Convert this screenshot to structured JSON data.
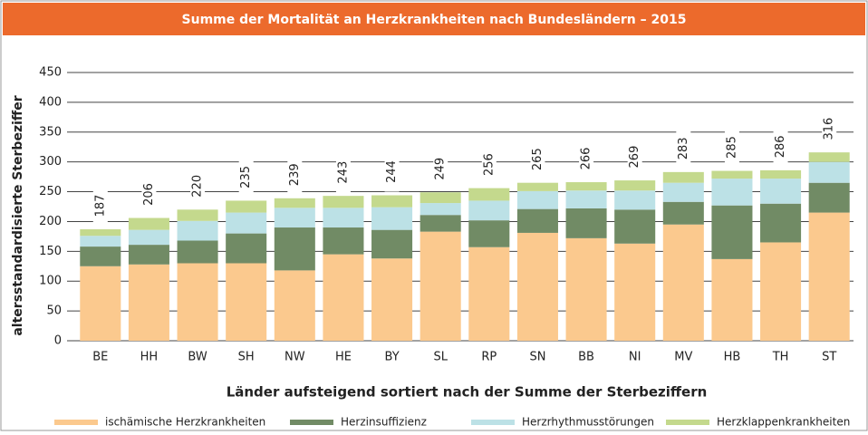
{
  "chart_data": {
    "type": "stacked_bar",
    "title": "Summe der Mortalität an Herzkrankheiten nach Bundesländern – 2015",
    "y_label": "altersstandardisierte Sterbeziffer",
    "x_label": "Länder aufsteigend sortiert nach der Summe der Sterbeziffern",
    "categories": [
      "BE",
      "HH",
      "BW",
      "SH",
      "NW",
      "HE",
      "BY",
      "SL",
      "RP",
      "SN",
      "BB",
      "NI",
      "MV",
      "HB",
      "TH",
      "ST"
    ],
    "series": [
      {
        "name": "ischämische Herzkrankheiten",
        "color": "#fbc98e",
        "values": [
          125,
          128,
          130,
          130,
          118,
          145,
          138,
          183,
          157,
          181,
          172,
          163,
          195,
          137,
          165,
          215
        ]
      },
      {
        "name": "Herzinsuffizienz",
        "color": "#718b65",
        "values": [
          33,
          33,
          38,
          50,
          72,
          45,
          48,
          28,
          45,
          40,
          50,
          57,
          38,
          90,
          65,
          50
        ]
      },
      {
        "name": "Herzrhythmusstörungen",
        "color": "#bce1e6",
        "values": [
          18,
          25,
          33,
          35,
          33,
          33,
          38,
          20,
          33,
          30,
          30,
          32,
          32,
          45,
          42,
          35
        ]
      },
      {
        "name": "Herzklappenkrankheiten",
        "color": "#c4d98d",
        "values": [
          11,
          20,
          19,
          20,
          16,
          20,
          20,
          18,
          21,
          14,
          14,
          17,
          18,
          13,
          14,
          16
        ]
      }
    ],
    "totals": [
      187,
      206,
      220,
      235,
      239,
      243,
      244,
      249,
      256,
      265,
      266,
      269,
      283,
      285,
      286,
      316
    ],
    "ylim": [
      0,
      450
    ],
    "yticks": [
      0,
      50,
      100,
      150,
      200,
      250,
      300,
      350,
      400,
      450
    ],
    "grid": true
  }
}
